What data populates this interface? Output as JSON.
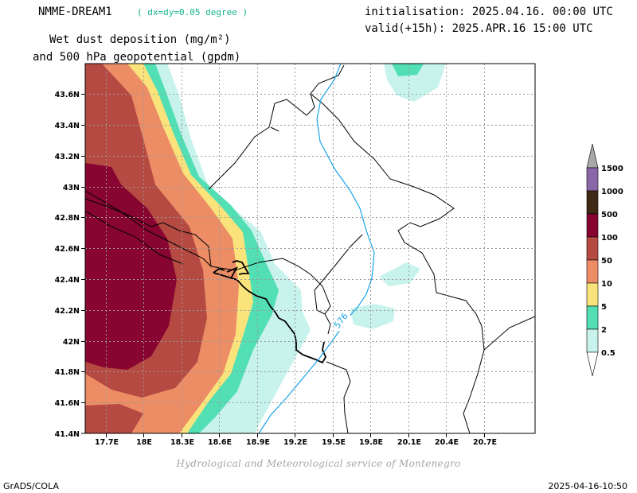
{
  "header": {
    "model": "NMME-DREAM1",
    "resolution": "( dx=dy=0.05 degree )",
    "init": "initialisation: 2025.04.16. 00:00 UTC",
    "valid": "valid(+15h): 2025.APR.16 15:00 UTC",
    "title_line1": "Wet dust deposition (mg/m²)",
    "title_line2": "and 500 hPa geopotential (gpdm)"
  },
  "map": {
    "lon_range": [
      17.5,
      21.0
    ],
    "lat_range": [
      41.4,
      43.7
    ],
    "lon_ticks": [
      "17.7E",
      "18E",
      "18.3E",
      "18.6E",
      "18.9E",
      "19.2E",
      "19.5E",
      "19.8E",
      "20.1E",
      "20.4E",
      "20.7E"
    ],
    "lat_ticks": [
      "43.6N",
      "43.4N",
      "43.2N",
      "43N",
      "42.8N",
      "42.6N",
      "42.4N",
      "42.2N",
      "42N",
      "41.8N",
      "41.6N",
      "41.4N"
    ],
    "contour_label": "576",
    "contour_color": "#1aa3e8",
    "grid": true
  },
  "legend": {
    "levels": [
      "0.5",
      "2",
      "5",
      "10",
      "50",
      "100",
      "500",
      "1000",
      "1500"
    ],
    "colors": [
      "#c7f3ec",
      "#52dfb4",
      "#fbe37c",
      "#ec8d66",
      "#b54a43",
      "#870530",
      "#3f2a18",
      "#8a68a8",
      "#a8a8a8"
    ]
  },
  "footer": {
    "credit": "Hydrological and Meteorological service of Montenegro",
    "software": "GrADS/COLA",
    "timestamp": "2025-04-16-10:50"
  }
}
